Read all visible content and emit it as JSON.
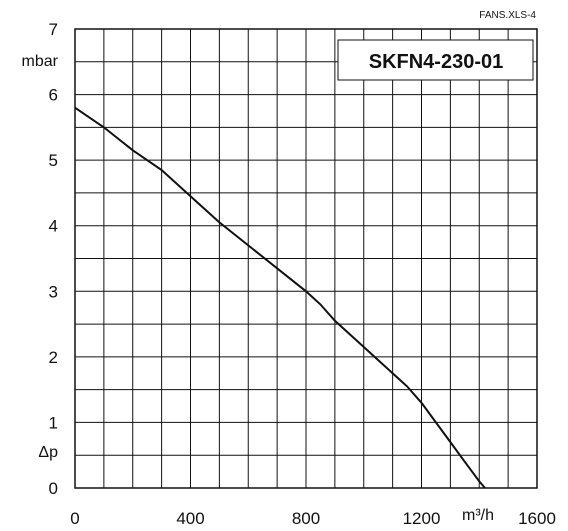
{
  "source_note": "FANS.XLS-4",
  "chart_data": {
    "type": "line",
    "title": "SKFN4-230-01",
    "xlabel": "m³/h",
    "ylabel": "Δp",
    "y_unit": "mbar",
    "xlim": [
      0,
      1600
    ],
    "ylim": [
      0,
      7
    ],
    "x_ticks": [
      "0",
      "400",
      "800",
      "1200",
      "1600"
    ],
    "y_ticks": [
      "0",
      "1",
      "2",
      "3",
      "4",
      "5",
      "6",
      "7"
    ],
    "grid": true,
    "x_minor_step": 100,
    "y_minor_step": 0.5,
    "series": [
      {
        "x": [
          0,
          100,
          200,
          300,
          400,
          500,
          600,
          700,
          800,
          850,
          900,
          1000,
          1100,
          1150,
          1200,
          1250,
          1300,
          1350,
          1400,
          1420
        ],
        "y": [
          5.8,
          5.5,
          5.15,
          4.85,
          4.45,
          4.05,
          3.7,
          3.35,
          3.0,
          2.8,
          2.55,
          2.15,
          1.75,
          1.55,
          1.3,
          1.0,
          0.7,
          0.4,
          0.1,
          0.0
        ]
      }
    ]
  }
}
